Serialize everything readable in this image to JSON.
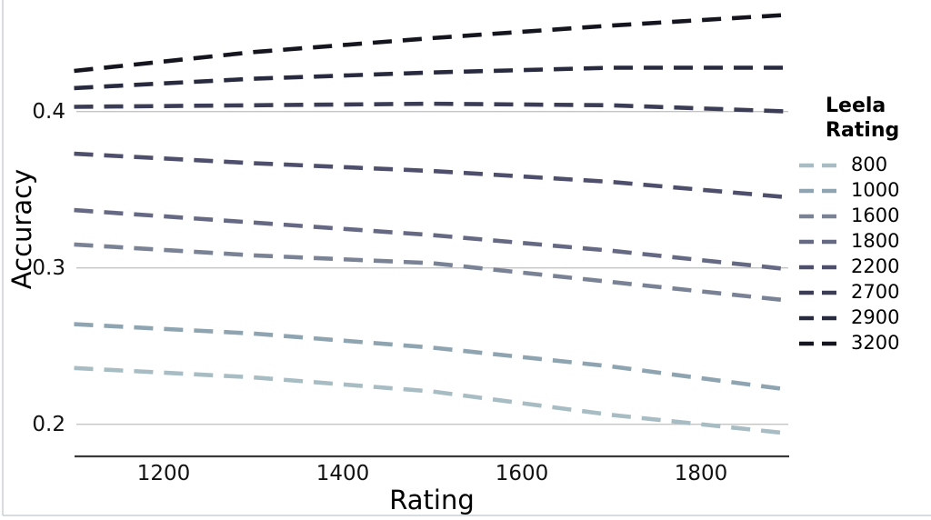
{
  "figure": {
    "bg": "#ffffff",
    "frame_border_color": "#cbd0d3",
    "axis_line_color": "#3a3a3a",
    "grid_color": "#c4c4c4",
    "tick_text_color": "#111111"
  },
  "chart_data": {
    "type": "line",
    "title": "",
    "xlabel": "Rating",
    "ylabel": "Accuracy",
    "line_style": "dashed",
    "grid": "horizontal gridlines at y ticks only",
    "legend_title": "Leela Rating",
    "legend_position": "right",
    "x": [
      1100,
      1300,
      1500,
      1700,
      1900
    ],
    "xlim": [
      1100,
      1900
    ],
    "ylim": [
      0.18,
      0.465
    ],
    "xticks": [
      1200,
      1400,
      1600,
      1800
    ],
    "yticks": [
      0.2,
      0.3,
      0.4
    ],
    "ytick_labels": [
      "0.2",
      "0.3",
      "0.4"
    ],
    "series": [
      {
        "name": "800",
        "color": "#a7bcc3",
        "values": [
          0.236,
          0.23,
          0.221,
          0.206,
          0.194
        ]
      },
      {
        "name": "1000",
        "color": "#8ea4b1",
        "values": [
          0.264,
          0.258,
          0.249,
          0.237,
          0.222
        ]
      },
      {
        "name": "1600",
        "color": "#7a8396",
        "values": [
          0.315,
          0.308,
          0.303,
          0.291,
          0.279
        ]
      },
      {
        "name": "1800",
        "color": "#656983",
        "values": [
          0.337,
          0.329,
          0.321,
          0.311,
          0.299
        ]
      },
      {
        "name": "2200",
        "color": "#4e4f6c",
        "values": [
          0.373,
          0.367,
          0.362,
          0.355,
          0.345
        ]
      },
      {
        "name": "2700",
        "color": "#3b3c55",
        "values": [
          0.403,
          0.404,
          0.405,
          0.404,
          0.4
        ]
      },
      {
        "name": "2900",
        "color": "#282a3f",
        "values": [
          0.415,
          0.421,
          0.425,
          0.428,
          0.428
        ]
      },
      {
        "name": "3200",
        "color": "#14151e",
        "values": [
          0.426,
          0.438,
          0.447,
          0.455,
          0.462
        ]
      }
    ]
  }
}
